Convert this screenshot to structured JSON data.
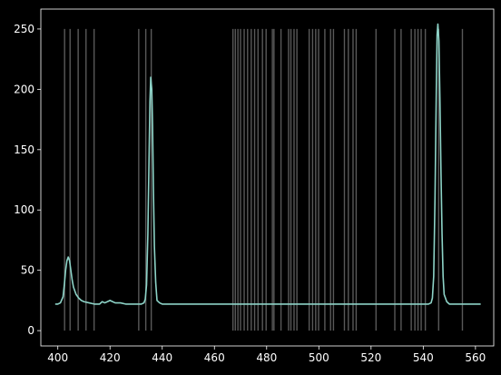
{
  "chart_data": {
    "type": "line",
    "title": "",
    "xlabel": "",
    "ylabel": "",
    "xlim": [
      393.5,
      567
    ],
    "ylim": [
      -12.7,
      266.5
    ],
    "x_ticks": [
      400,
      420,
      440,
      460,
      480,
      500,
      520,
      540,
      560
    ],
    "y_ticks": [
      0,
      50,
      100,
      150,
      200,
      250
    ],
    "x_tick_labels": [
      "400",
      "420",
      "440",
      "460",
      "480",
      "500",
      "520",
      "540",
      "560"
    ],
    "y_tick_labels": [
      "0",
      "50",
      "100",
      "150",
      "200",
      "250"
    ],
    "grid": false,
    "background": "#000000",
    "line_color": "#8dd3c7",
    "reference_line_color": "#ffffff",
    "reference_lines": {
      "ymin": 0,
      "ymax": 250,
      "x": [
        402.6,
        404.7,
        407.8,
        410.8,
        413.9,
        431.0,
        433.7,
        435.8,
        467.1,
        468.0,
        469.0,
        470.0,
        471.4,
        472.7,
        474.1,
        475.4,
        476.7,
        478.4,
        479.8,
        482.2,
        482.8,
        485.5,
        488.4,
        489.3,
        490.5,
        491.6,
        496.3,
        497.6,
        498.8,
        499.9,
        502.3,
        504.5,
        505.6,
        509.8,
        511.3,
        513.1,
        514.3,
        521.9,
        529.1,
        531.5,
        535.4,
        536.8,
        538.0,
        539.2,
        540.8,
        545.9,
        555.0
      ]
    },
    "series": [
      {
        "x": [
          399,
          400,
          401,
          402,
          402.5,
          403,
          403.5,
          404,
          404.5,
          405,
          405.5,
          406,
          407,
          408,
          409,
          410,
          412,
          414,
          416,
          417,
          418,
          419,
          420,
          421,
          422,
          424,
          426,
          428,
          430,
          431,
          432,
          433,
          433.5,
          434,
          434.5,
          435,
          435.3,
          435.6,
          436,
          436.3,
          436.6,
          437,
          437.5,
          438,
          439,
          440,
          442,
          446,
          450,
          460,
          470,
          480,
          490,
          500,
          510,
          520,
          530,
          535,
          540,
          542,
          543,
          543.5,
          544,
          544.5,
          545,
          545.3,
          545.6,
          546,
          546.4,
          546.8,
          547.2,
          547.6,
          548,
          549,
          550,
          555,
          560,
          562
        ],
        "y": [
          22,
          22,
          23,
          28,
          38,
          50,
          58,
          61,
          58,
          50,
          42,
          36,
          30,
          27,
          25,
          24,
          23,
          22,
          22,
          24,
          23,
          24,
          25,
          24,
          23,
          23,
          22,
          22,
          22,
          22,
          22,
          23,
          26,
          38,
          80,
          150,
          190,
          210,
          200,
          170,
          120,
          70,
          40,
          25,
          23,
          22,
          22,
          22,
          22,
          22,
          22,
          22,
          22,
          22,
          22,
          22,
          22,
          22,
          22,
          22,
          23,
          27,
          45,
          110,
          200,
          245,
          254,
          240,
          190,
          130,
          80,
          45,
          30,
          24,
          22,
          22,
          22,
          22
        ]
      }
    ]
  }
}
